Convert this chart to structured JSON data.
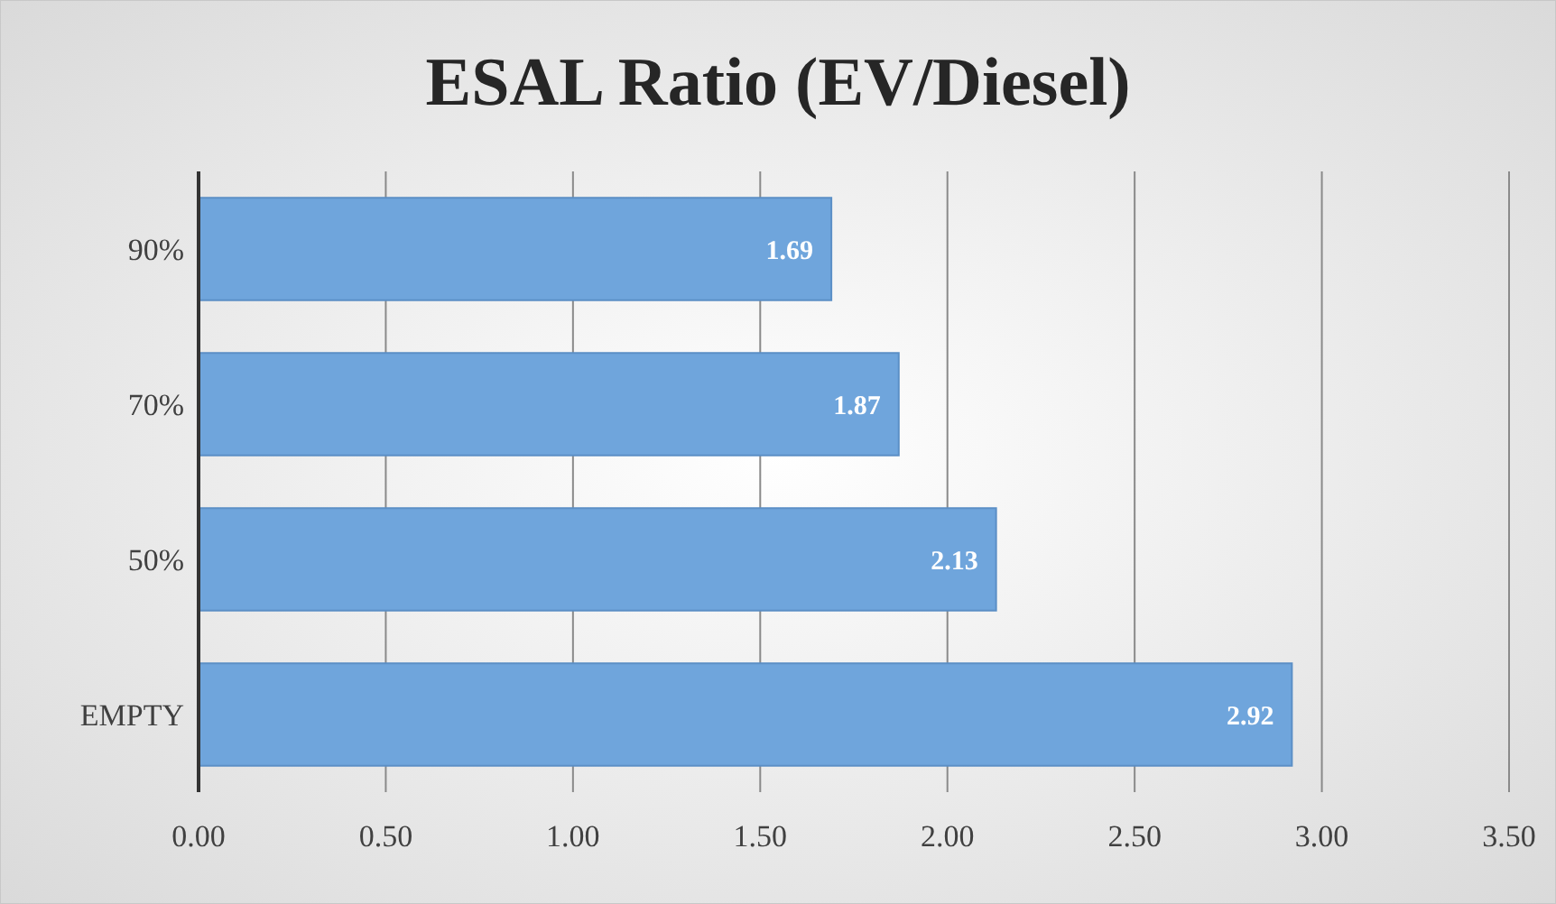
{
  "chart_data": {
    "type": "bar",
    "orientation": "horizontal",
    "title": "ESAL Ratio (EV/Diesel)",
    "categories": [
      "90%",
      "70%",
      "50%",
      "EMPTY"
    ],
    "values": [
      1.69,
      1.87,
      2.13,
      2.92
    ],
    "color": "#6fa5dc",
    "xlim": [
      0,
      3.5
    ],
    "xticks": [
      {
        "value": 0,
        "label": "0.00"
      },
      {
        "value": 0.5,
        "label": "0.50"
      },
      {
        "value": 1,
        "label": "1.00"
      },
      {
        "value": 1.5,
        "label": "1.50"
      },
      {
        "value": 2,
        "label": "2.00"
      },
      {
        "value": 2.5,
        "label": "2.50"
      },
      {
        "value": 3,
        "label": "3.00"
      },
      {
        "value": 3.5,
        "label": "3.50"
      }
    ],
    "grid": "x",
    "data_labels": true
  }
}
